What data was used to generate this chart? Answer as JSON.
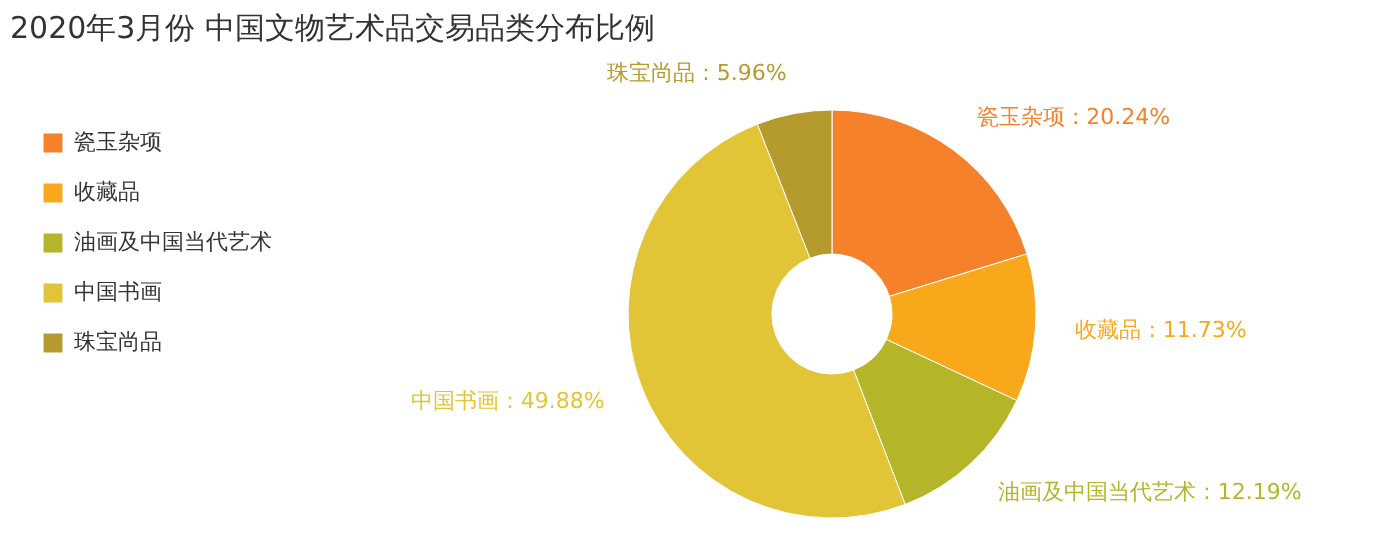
{
  "chart_data": {
    "type": "donut",
    "title": "2020年3月份 中国文物艺术品交易品类分布比例",
    "categories": [
      "瓷玉杂项",
      "收藏品",
      "油画及中国当代艺术",
      "中国书画",
      "珠宝尚品"
    ],
    "values": [
      20.24,
      11.73,
      12.19,
      49.88,
      5.96
    ],
    "colors": [
      "#f5812a",
      "#f9a81b",
      "#b5b52a",
      "#e2c437",
      "#b59a2e"
    ],
    "value_labels": [
      "瓷玉杂项 : 20.24%",
      "收藏品 : 11.73%",
      "油画及中国当代艺术 : 12.19%",
      "中国书画 : 49.88%",
      "珠宝尚品 : 5.96%"
    ],
    "legend": "top left"
  }
}
